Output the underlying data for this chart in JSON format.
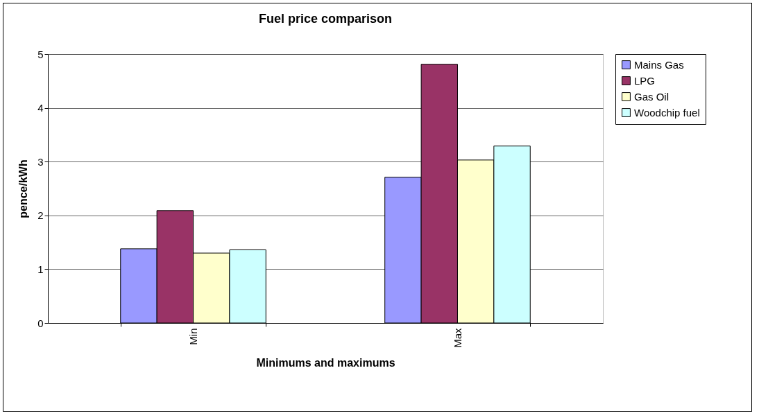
{
  "chart_data": {
    "type": "bar",
    "title": "Fuel price comparison",
    "xlabel": "Minimums and maximums",
    "ylabel": "pence/kWh",
    "categories": [
      "Min",
      "Max"
    ],
    "series": [
      {
        "name": "Mains Gas",
        "color": "#9999ff",
        "values": [
          1.38,
          2.71
        ]
      },
      {
        "name": "LPG",
        "color": "#993366",
        "values": [
          2.09,
          4.81
        ]
      },
      {
        "name": "Gas Oil",
        "color": "#ffffcc",
        "values": [
          1.3,
          3.03
        ]
      },
      {
        "name": "Woodchip fuel",
        "color": "#ccffff",
        "values": [
          1.36,
          3.29
        ]
      }
    ],
    "ylim": [
      0,
      5
    ],
    "yticks": [
      0,
      1,
      2,
      3,
      4,
      5
    ],
    "grid": "y",
    "legend": "right"
  }
}
